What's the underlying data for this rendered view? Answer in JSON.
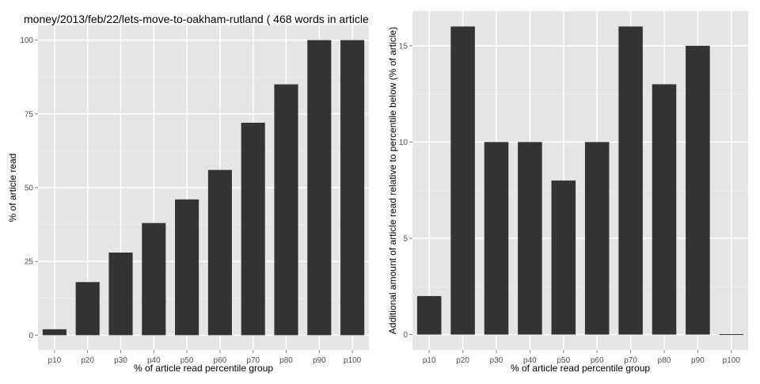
{
  "page_title": "money/2013/feb/22/lets-move-to-oakham-rutland ( 468 words in article",
  "colors": {
    "panel": "#e5e5e5",
    "grid_major": "#ffffff",
    "grid_minor": "#f2f2f2",
    "bar": "#333333",
    "tick_text": "#4d4d4d",
    "tick_mark": "#7f7f7f"
  },
  "chart_data": [
    {
      "type": "bar",
      "title": "",
      "xlabel": "% of article read percentile group",
      "ylabel": "% of article read",
      "categories": [
        "p10",
        "p20",
        "p30",
        "p40",
        "p50",
        "p60",
        "p70",
        "p80",
        "p90",
        "p100"
      ],
      "values": [
        2,
        18,
        28,
        38,
        46,
        56,
        72,
        85,
        100,
        100
      ],
      "ylim": [
        -5,
        105
      ],
      "yticks": [
        0,
        25,
        50,
        75,
        100
      ],
      "ytick_labels": [
        "0",
        "25",
        "50",
        "75",
        "100"
      ],
      "grid": true,
      "legend": "none"
    },
    {
      "type": "bar",
      "title": "",
      "xlabel": "% of article read percentile group",
      "ylabel": "Additional amount of article read relative to percentile below (% of article)",
      "categories": [
        "p10",
        "p20",
        "p30",
        "p40",
        "p50",
        "p60",
        "p70",
        "p80",
        "p90",
        "p100"
      ],
      "values": [
        2,
        16,
        10,
        10,
        8,
        10,
        16,
        13,
        15,
        0
      ],
      "ylim": [
        -0.8,
        16.8
      ],
      "yticks": [
        0,
        5,
        10,
        15
      ],
      "ytick_labels": [
        "0",
        "5",
        "10",
        "15"
      ],
      "grid": true,
      "legend": "none"
    }
  ]
}
